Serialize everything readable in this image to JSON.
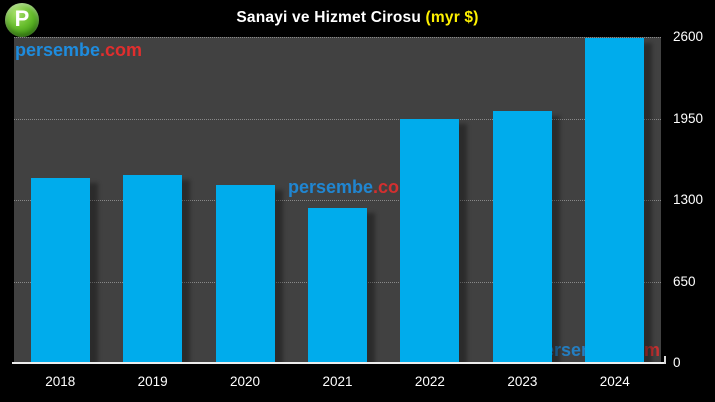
{
  "logo": {
    "letter": "P"
  },
  "title": {
    "main": "Sanayi ve Hizmet Cirosu",
    "unit": "(myr $)"
  },
  "watermark": {
    "name": "persembe",
    "tld": ".com"
  },
  "chart_data": {
    "type": "bar",
    "title": "Sanayi ve Hizmet Cirosu (myr $)",
    "categories": [
      "2018",
      "2019",
      "2020",
      "2021",
      "2022",
      "2023",
      "2024"
    ],
    "values": [
      1475,
      1500,
      1420,
      1240,
      1950,
      2010,
      2590
    ],
    "xlabel": "",
    "ylabel": "",
    "ylim": [
      0,
      2600
    ],
    "yticks": [
      0,
      650,
      1300,
      1950,
      2600
    ],
    "legend": "none",
    "grid": "horizontal-dotted",
    "bar_color": "#00ACEC",
    "plot_background": "#414141",
    "outer_background": "#000000"
  },
  "colors": {
    "title_text": "#FFFFFF",
    "title_unit": "#FFF200",
    "watermark_blue": "#1E8CDE",
    "watermark_red": "#E02E2E",
    "bar_blue": "#00ACEC",
    "logo_green": "#54B327",
    "axis_text": "#FFFFFF"
  }
}
